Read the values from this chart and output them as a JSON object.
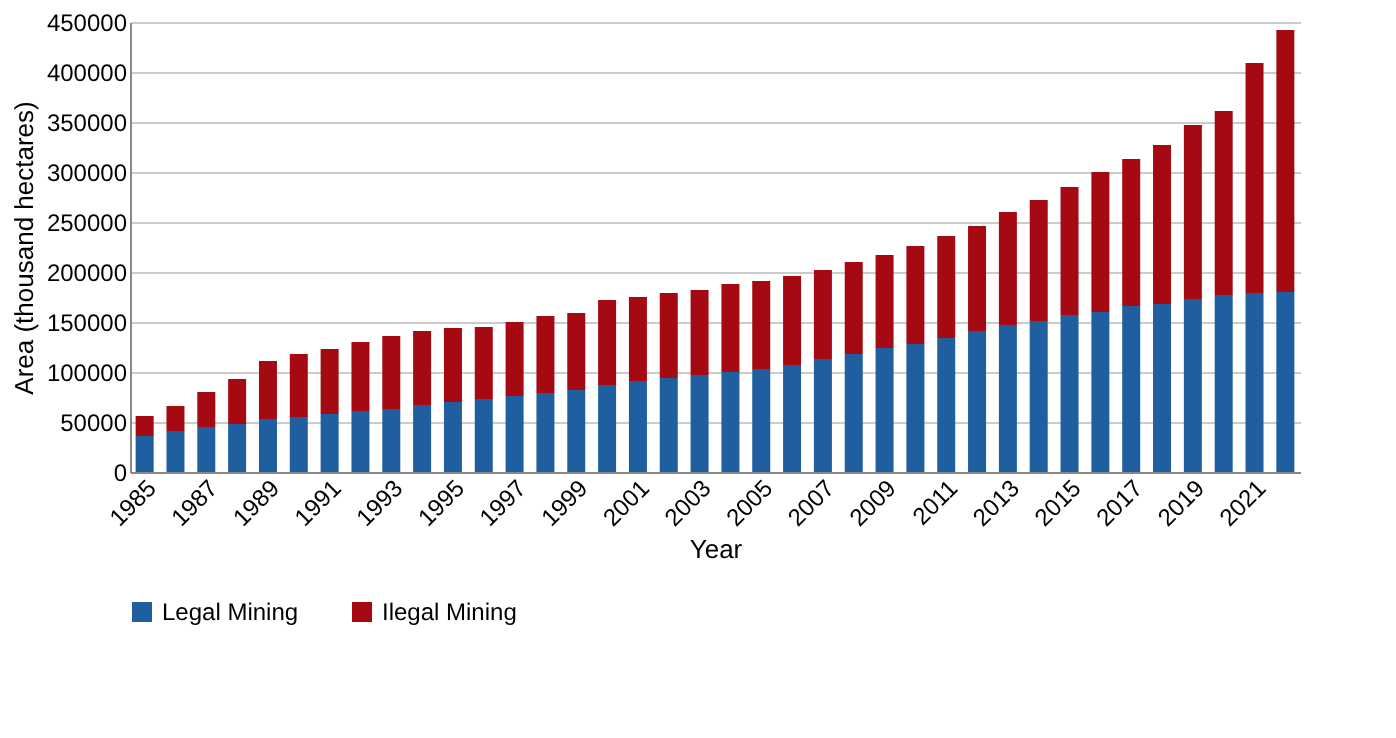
{
  "chart_data": {
    "type": "bar",
    "stacked": true,
    "xlabel": "Year",
    "ylabel": "Area (thousand hectares)",
    "categories": [
      "1985",
      null,
      "1987",
      null,
      "1989",
      null,
      "1991",
      null,
      "1993",
      null,
      "1995",
      null,
      "1997",
      null,
      "1999",
      null,
      "2001",
      null,
      "2003",
      null,
      "2005",
      null,
      "2007",
      null,
      "2009",
      null,
      "2011",
      null,
      "2013",
      null,
      "2015",
      null,
      "2017",
      null,
      "2019",
      null,
      "2021",
      null
    ],
    "series": [
      {
        "name": "Legal Mining",
        "color": "#1f5fa0",
        "values": [
          36000,
          41000,
          45000,
          48000,
          53000,
          55000,
          58000,
          61000,
          63000,
          67000,
          70000,
          73000,
          76000,
          79000,
          82000,
          87000,
          91000,
          94000,
          97000,
          100000,
          103000,
          107000,
          113000,
          118000,
          124000,
          128000,
          134000,
          141000,
          147000,
          151000,
          157000,
          160000,
          166000,
          168000,
          173000,
          177000,
          179000,
          180000
        ]
      },
      {
        "name": "Ilegal  Mining",
        "color": "#a50a12",
        "values": [
          20000,
          25000,
          35000,
          45000,
          58000,
          63000,
          65000,
          69000,
          73000,
          74000,
          74000,
          72000,
          74000,
          77000,
          77000,
          85000,
          84000,
          85000,
          85000,
          88000,
          88000,
          89000,
          89000,
          92000,
          93000,
          98000,
          102000,
          105000,
          113000,
          121000,
          128000,
          140000,
          147000,
          159000,
          174000,
          184000,
          230000,
          262000
        ]
      }
    ],
    "ylim": [
      0,
      450000
    ],
    "yticks": [
      0,
      50000,
      100000,
      150000,
      200000,
      250000,
      300000,
      350000,
      400000,
      450000
    ],
    "grid": "y",
    "legend": "bottom"
  }
}
